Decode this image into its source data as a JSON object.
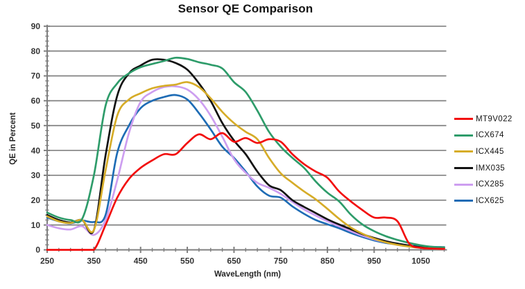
{
  "chart_data": {
    "type": "line",
    "title": "Sensor QE Comparison",
    "xlabel": "WaveLength (nm)",
    "ylabel": "QE in Percent",
    "xlim": [
      250,
      1100
    ],
    "ylim": [
      0,
      90
    ],
    "xticks": [
      250,
      350,
      450,
      550,
      650,
      750,
      850,
      950,
      1050
    ],
    "yticks": [
      0,
      10,
      20,
      30,
      40,
      50,
      60,
      70,
      80,
      90
    ],
    "x_minor_step": 25,
    "y_minor_step": 2,
    "grid": "horizontal",
    "grid_color": "#808080",
    "axis_color": "#7f7f7f",
    "legend_position": "right",
    "wavelengths": [
      250,
      275,
      300,
      325,
      350,
      375,
      400,
      425,
      450,
      475,
      500,
      525,
      550,
      575,
      600,
      625,
      650,
      675,
      700,
      725,
      750,
      775,
      800,
      825,
      850,
      875,
      900,
      925,
      950,
      975,
      1000,
      1025,
      1050,
      1075,
      1100
    ],
    "series": [
      {
        "name": "MT9V022",
        "color": "#f20d0d",
        "values": [
          0,
          0,
          0,
          0,
          0,
          10,
          21,
          28.5,
          33,
          36,
          38.5,
          38.5,
          43,
          46.5,
          44.5,
          47,
          43.5,
          45,
          43,
          44.5,
          43.5,
          38.5,
          34.5,
          31.5,
          29,
          23.5,
          19.5,
          16,
          13,
          13,
          11.5,
          2.5,
          0.8,
          0.5,
          0.4
        ]
      },
      {
        "name": "ICX674",
        "color": "#2e9c6a",
        "values": [
          15,
          13,
          12,
          12.5,
          30,
          58,
          67,
          71,
          73.5,
          74.8,
          76,
          77.3,
          76.8,
          75.5,
          74.5,
          73,
          67.5,
          63.5,
          56,
          47.5,
          41.5,
          37,
          33,
          27.5,
          23,
          19.5,
          14.2,
          10.2,
          7.5,
          5.5,
          4,
          2.8,
          1.8,
          1.2,
          1
        ]
      },
      {
        "name": "ICX445",
        "color": "#d6ac28",
        "values": [
          13.5,
          11.5,
          10.8,
          12,
          8,
          32,
          54,
          60.5,
          63,
          65,
          66,
          66.5,
          67.5,
          65.5,
          61,
          55.5,
          51,
          47.5,
          44.5,
          37,
          30.8,
          27,
          23.5,
          20.3,
          16.5,
          12.5,
          9,
          6.5,
          4.5,
          3,
          2,
          1.3,
          0.8,
          0.5,
          0.4
        ]
      },
      {
        "name": "IMX035",
        "color": "#121212",
        "values": [
          14,
          12,
          11,
          12,
          8,
          38,
          62,
          71,
          74.2,
          76.5,
          76.5,
          75.2,
          72.5,
          67,
          60,
          51,
          44,
          38.5,
          31.5,
          26,
          24,
          20,
          17.3,
          14.8,
          12.3,
          10.2,
          8.3,
          6.3,
          4.8,
          3.5,
          2.5,
          1.7,
          1,
          0.6,
          0.4
        ]
      },
      {
        "name": "ICX285",
        "color": "#cd9ef0",
        "values": [
          10,
          8.7,
          8.2,
          9.5,
          6,
          12,
          28,
          47,
          59.5,
          63.5,
          65.5,
          65.8,
          64.5,
          60.5,
          54,
          45.5,
          36.5,
          31,
          27,
          25,
          22.5,
          19.3,
          16.3,
          13.8,
          11.5,
          9.5,
          7.5,
          5.7,
          4.2,
          3,
          2,
          1.3,
          0.8,
          0.5,
          0.3
        ]
      },
      {
        "name": "ICX625",
        "color": "#1e6cb5",
        "values": [
          13,
          11.5,
          10.7,
          11.8,
          11.2,
          14,
          39,
          50,
          57,
          60,
          61.5,
          62.3,
          60.5,
          55,
          48.5,
          41.5,
          37,
          31.5,
          25.5,
          21.8,
          21,
          17.5,
          14.5,
          12,
          10.3,
          8.7,
          6.8,
          5.2,
          3.8,
          2.8,
          2.2,
          1.7,
          1.4,
          1.2,
          1.1
        ]
      }
    ]
  }
}
